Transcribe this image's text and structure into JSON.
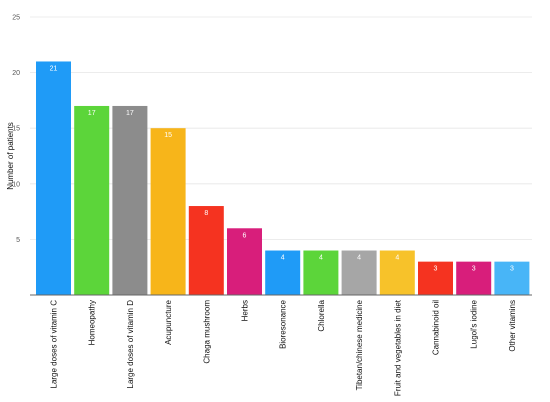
{
  "chart_data": {
    "type": "bar",
    "title": "",
    "xlabel": "",
    "ylabel": "Number of patients",
    "ylim": [
      0,
      25
    ],
    "yticks": [
      5,
      10,
      15,
      20,
      25
    ],
    "grid": true,
    "categories": [
      "Large doses of vitamin C",
      "Homeopathy",
      "Large doses of vitamin D",
      "Acupuncture",
      "Chaga mushroom",
      "Herbs",
      "Bioresonance",
      "Chlorella",
      "Tibetan/chinese medicine",
      "Fruit and vegetables in diet",
      "Cannabinoid oil",
      "Lugol's iodine",
      "Other vitamins"
    ],
    "values": [
      21,
      17,
      17,
      15,
      8,
      6,
      4,
      4,
      4,
      4,
      3,
      3,
      3
    ],
    "colors": [
      "#1f9bf7",
      "#5cd53a",
      "#8c8c8c",
      "#f7b51a",
      "#f53320",
      "#d81e7b",
      "#1f9bf7",
      "#5cd53a",
      "#a6a6a6",
      "#f7c22a",
      "#f53320",
      "#d81e7b",
      "#48b5f7"
    ]
  }
}
